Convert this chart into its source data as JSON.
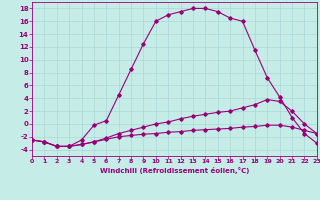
{
  "xlabel": "Windchill (Refroidissement éolien,°C)",
  "bg_color": "#c6ece8",
  "line_color": "#990077",
  "grid_color": "#a8d8d4",
  "xlim": [
    0,
    23
  ],
  "ylim": [
    -5,
    19
  ],
  "xticks": [
    0,
    1,
    2,
    3,
    4,
    5,
    6,
    7,
    8,
    9,
    10,
    11,
    12,
    13,
    14,
    15,
    16,
    17,
    18,
    19,
    20,
    21,
    22,
    23
  ],
  "yticks": [
    -4,
    -2,
    0,
    2,
    4,
    6,
    8,
    10,
    12,
    14,
    16,
    18
  ],
  "curve1_x": [
    0,
    1,
    2,
    3,
    4,
    5,
    6,
    7,
    8,
    9,
    10,
    11,
    12,
    13,
    14,
    15,
    16,
    17,
    18,
    19,
    20,
    21,
    22,
    23
  ],
  "curve1_y": [
    -2.5,
    -2.8,
    -3.5,
    -3.5,
    -2.5,
    -0.2,
    0.5,
    4.5,
    8.5,
    12.5,
    16.0,
    17.0,
    17.5,
    18.0,
    18.0,
    17.5,
    16.5,
    16.0,
    11.5,
    7.2,
    4.2,
    1.0,
    -1.5,
    -3.0
  ],
  "curve2_x": [
    0,
    1,
    2,
    3,
    4,
    5,
    6,
    7,
    8,
    9,
    10,
    11,
    12,
    13,
    14,
    15,
    16,
    17,
    18,
    19,
    20,
    21,
    22,
    23
  ],
  "curve2_y": [
    -2.5,
    -2.8,
    -3.5,
    -3.5,
    -3.2,
    -2.8,
    -2.2,
    -1.5,
    -1.0,
    -0.5,
    0.0,
    0.3,
    0.8,
    1.2,
    1.5,
    1.8,
    2.0,
    2.5,
    3.0,
    3.8,
    3.5,
    2.0,
    0.0,
    -1.5
  ],
  "curve3_x": [
    0,
    1,
    2,
    3,
    4,
    5,
    6,
    7,
    8,
    9,
    10,
    11,
    12,
    13,
    14,
    15,
    16,
    17,
    18,
    19,
    20,
    21,
    22,
    23
  ],
  "curve3_y": [
    -2.5,
    -2.8,
    -3.5,
    -3.5,
    -3.2,
    -2.8,
    -2.4,
    -2.0,
    -1.8,
    -1.6,
    -1.5,
    -1.3,
    -1.2,
    -1.0,
    -0.9,
    -0.8,
    -0.7,
    -0.5,
    -0.4,
    -0.2,
    -0.2,
    -0.5,
    -1.0,
    -1.5
  ]
}
